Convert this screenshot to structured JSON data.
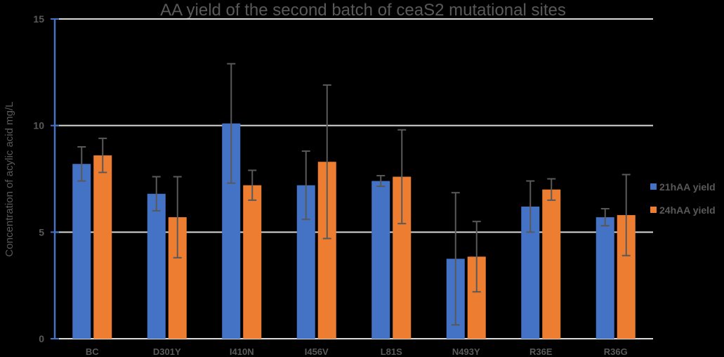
{
  "chart_data": {
    "type": "bar",
    "title": "AA yield of the second batch of ceaS2 mutational sites",
    "xlabel": "",
    "ylabel": "Concentration  of acylic acid   mg/L",
    "ylim": [
      0,
      15
    ],
    "yticks": [
      0,
      5,
      10,
      15
    ],
    "grid": true,
    "legend_position": "right",
    "categories": [
      "BC",
      "D301Y",
      "I410N",
      "I456V",
      "L81S",
      "N493Y",
      "R36E",
      "R36G"
    ],
    "series": [
      {
        "name": "21hAA yield",
        "color": "#4472C4",
        "values": [
          8.2,
          6.8,
          10.1,
          7.2,
          7.4,
          3.75,
          6.2,
          5.7
        ],
        "errors": [
          0.8,
          0.8,
          2.8,
          1.6,
          0.25,
          3.1,
          1.2,
          0.4
        ]
      },
      {
        "name": "24hAA yield",
        "color": "#ED7D31",
        "values": [
          8.6,
          5.7,
          7.2,
          8.3,
          7.6,
          3.85,
          7.0,
          5.8
        ],
        "errors": [
          0.8,
          1.9,
          0.7,
          3.6,
          2.2,
          1.65,
          0.5,
          1.9
        ]
      }
    ]
  },
  "colors": {
    "background": "#000000",
    "gridline": "#D9D9D9",
    "axis_line": "#4472C4",
    "text": "#595959",
    "error_bar": "#595959"
  }
}
